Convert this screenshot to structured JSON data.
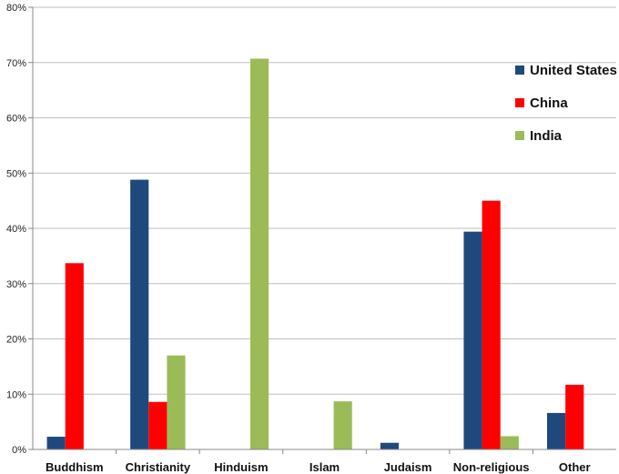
{
  "chart_data": {
    "type": "bar",
    "categories": [
      "Buddhism",
      "Christianity",
      "Hinduism",
      "Islam",
      "Judaism",
      "Non-religious",
      "Other"
    ],
    "series": [
      {
        "name": "United States",
        "color": "#1f497d",
        "values": [
          2.3,
          48.8,
          0,
          0,
          1.2,
          39.4,
          6.6
        ]
      },
      {
        "name": "China",
        "color": "#ff0000",
        "values": [
          33.7,
          8.6,
          0,
          0,
          0,
          45.0,
          11.7
        ]
      },
      {
        "name": "India",
        "color": "#9bbb59",
        "values": [
          0,
          17.0,
          70.7,
          8.7,
          0,
          2.4,
          0
        ]
      }
    ],
    "ylim": [
      0,
      80
    ],
    "ytick_labels": [
      "0%",
      "10%",
      "20%",
      "30%",
      "40%",
      "50%",
      "60%",
      "70%",
      "80%"
    ],
    "grid": "horizontal",
    "legend_position": "top-right",
    "title": "",
    "xlabel": "",
    "ylabel": ""
  }
}
